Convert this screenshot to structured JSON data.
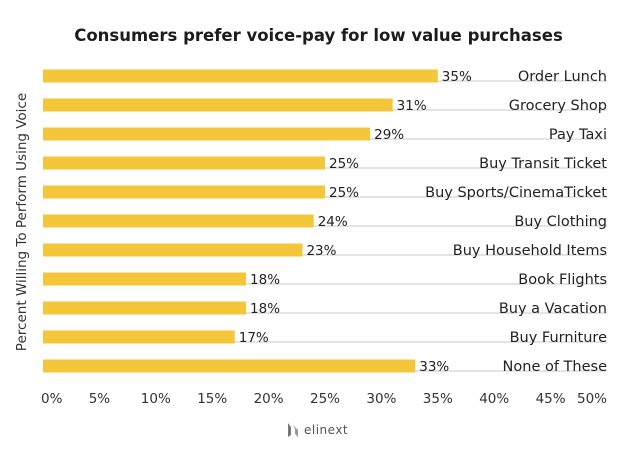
{
  "chart_data": {
    "type": "bar",
    "orientation": "horizontal",
    "title": "Consumers prefer voice-pay for low value purchases",
    "ylabel": "Percent Willing To Perform Using Voice",
    "xlabel": "",
    "categories": [
      "Order Lunch",
      "Grocery Shop",
      "Pay Taxi",
      "Buy Transit Ticket",
      "Buy Sports/CinemaTicket",
      "Buy Clothing",
      "Buy Household Items",
      "Book Flights",
      "Buy a Vacation",
      "Buy Furniture",
      "None of These"
    ],
    "values": [
      35,
      31,
      29,
      25,
      25,
      24,
      23,
      18,
      18,
      17,
      33
    ],
    "data_labels": [
      "35%",
      "31%",
      "29%",
      "25%",
      "25%",
      "24%",
      "23%",
      "18%",
      "18%",
      "17%",
      "33%"
    ],
    "x_ticks": [
      "0%",
      "5%",
      "10%",
      "15%",
      "20%",
      "25%",
      "30%",
      "35%",
      "40%",
      "45%",
      "50%"
    ],
    "xlim": [
      0,
      50
    ],
    "grid": false,
    "legend": "none",
    "bar_color": "#f4c63a",
    "track_color": "#e4e4e4"
  },
  "watermark": {
    "text": "elinext",
    "icon": "elinext-logo-icon"
  }
}
